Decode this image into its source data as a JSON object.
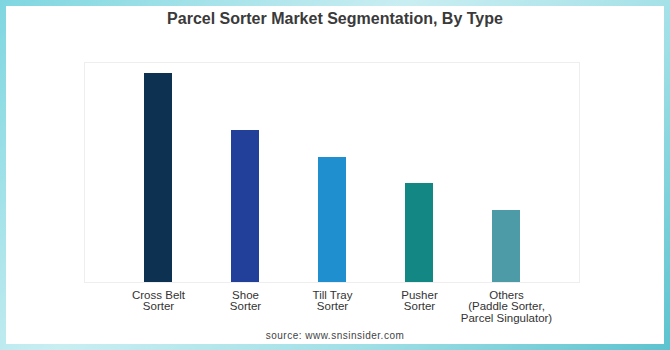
{
  "chart_data": {
    "type": "bar",
    "title": "Parcel Sorter Market Segmentation, By Type",
    "caption": "source: www.snsinsider.com",
    "categories": [
      "Cross Belt Sorter",
      "Shoe Sorter",
      "Till Tray Sorter",
      "Pusher Sorter",
      "Others (Paddle Sorter, Parcel Singulator)"
    ],
    "values": [
      209,
      152,
      125,
      99,
      72
    ],
    "colors": [
      "#0d3251",
      "#22409a",
      "#1f8fd0",
      "#128784",
      "#4c9ba6"
    ],
    "ylim": [
      0,
      220
    ],
    "grid": false,
    "tick_labels": "x"
  }
}
